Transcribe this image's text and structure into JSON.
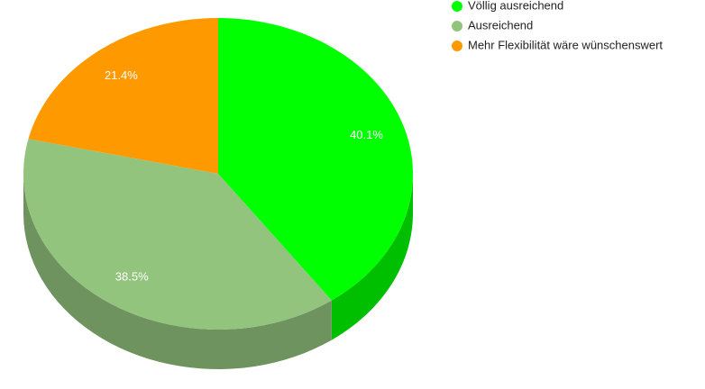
{
  "chart_data": {
    "type": "pie",
    "categories": [
      "Völlig ausreichend",
      "Ausreichend",
      "Mehr Flexibilität wäre wünschenswert"
    ],
    "values": [
      40.1,
      38.5,
      21.4
    ],
    "value_labels": [
      "40.1%",
      "38.5%",
      "21.4%"
    ],
    "colors": [
      "#00ff00",
      "#93c47d",
      "#ff9900"
    ],
    "legend": "top-right"
  }
}
